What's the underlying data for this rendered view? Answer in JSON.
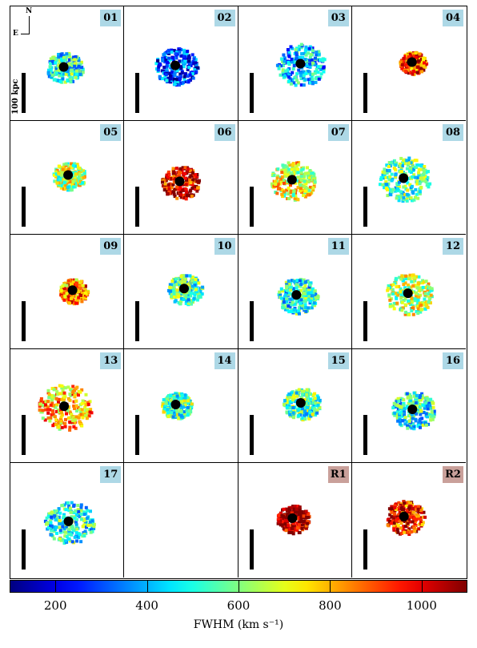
{
  "chart_data": {
    "type": "heatmap",
    "description_note": "",
    "panels": [
      {
        "label": "01",
        "style": "target"
      },
      {
        "label": "02",
        "style": "target"
      },
      {
        "label": "03",
        "style": "target"
      },
      {
        "label": "04",
        "style": "target"
      },
      {
        "label": "05",
        "style": "target"
      },
      {
        "label": "06",
        "style": "target"
      },
      {
        "label": "07",
        "style": "target"
      },
      {
        "label": "08",
        "style": "target"
      },
      {
        "label": "09",
        "style": "target"
      },
      {
        "label": "10",
        "style": "target"
      },
      {
        "label": "11",
        "style": "target"
      },
      {
        "label": "12",
        "style": "target"
      },
      {
        "label": "13",
        "style": "target"
      },
      {
        "label": "14",
        "style": "target"
      },
      {
        "label": "15",
        "style": "target"
      },
      {
        "label": "16",
        "style": "target"
      },
      {
        "label": "17",
        "style": "target"
      },
      {
        "label": "",
        "style": "empty"
      },
      {
        "label": "R1",
        "style": "reference"
      },
      {
        "label": "R2",
        "style": "reference"
      }
    ],
    "scalebar_label": "100 kpc",
    "compass": {
      "north": "N",
      "east": "E"
    },
    "colorbar": {
      "label": "FWHM (km s⁻¹)",
      "range": [
        100,
        1100
      ],
      "ticks": [
        200,
        400,
        600,
        800,
        1000
      ],
      "tick_labels": [
        "200",
        "400",
        "600",
        "800",
        "1000"
      ],
      "colormap": "jet"
    },
    "dominant_fwhm": [
      500,
      300,
      420,
      930,
      650,
      1000,
      700,
      550,
      850,
      550,
      500,
      650,
      800,
      560,
      550,
      500,
      500,
      0,
      1080,
      950
    ]
  },
  "colors": {
    "badge_target": "#add8e6",
    "badge_reference": "#c9a09a"
  }
}
